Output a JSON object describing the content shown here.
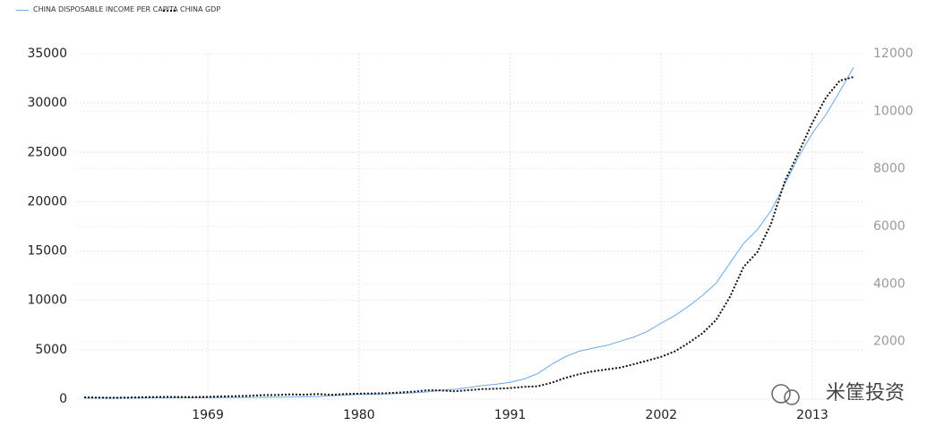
{
  "chart_data": {
    "type": "line",
    "x": [
      1960,
      1961,
      1962,
      1963,
      1964,
      1965,
      1966,
      1967,
      1968,
      1969,
      1970,
      1971,
      1972,
      1973,
      1974,
      1975,
      1976,
      1977,
      1978,
      1979,
      1980,
      1981,
      1982,
      1983,
      1984,
      1985,
      1986,
      1987,
      1988,
      1989,
      1990,
      1991,
      1992,
      1993,
      1994,
      1995,
      1996,
      1997,
      1998,
      1999,
      2000,
      2001,
      2002,
      2003,
      2004,
      2005,
      2006,
      2007,
      2008,
      2009,
      2010,
      2011,
      2012,
      2013,
      2014,
      2015,
      2016
    ],
    "series": [
      {
        "name": "CHINA DISPOSABLE INCOME PER CAPITA",
        "color": "#6aa8ea",
        "axis": "y",
        "values": [
          110,
          105,
          100,
          105,
          110,
          120,
          130,
          135,
          135,
          140,
          150,
          160,
          170,
          180,
          190,
          210,
          230,
          260,
          343,
          405,
          478,
          500,
          535,
          565,
          650,
          739,
          900,
          1002,
          1180,
          1374,
          1510,
          1700,
          2027,
          2577,
          3496,
          4283,
          4839,
          5160,
          5425,
          5854,
          6280,
          6860,
          7703,
          8472,
          9422,
          10493,
          11759,
          13786,
          15781,
          17175,
          19109,
          21810,
          24565,
          26955,
          28844,
          31195,
          33616
        ]
      },
      {
        "name": "CHINA GDP",
        "color": "#111111",
        "axis": "y2",
        "values": [
          59,
          50,
          47,
          50,
          59,
          70,
          76,
          72,
          70,
          79,
          92,
          100,
          114,
          139,
          144,
          163,
          154,
          175,
          150,
          178,
          191,
          196,
          205,
          230,
          260,
          309,
          301,
          273,
          312,
          348,
          361,
          383,
          427,
          445,
          564,
          734,
          864,
          962,
          1029,
          1094,
          1211,
          1339,
          1471,
          1660,
          1955,
          2286,
          2752,
          3552,
          4598,
          5110,
          6101,
          7573,
          8561,
          9607,
          10482,
          11065,
          11191
        ]
      }
    ],
    "xlim": [
      1960,
      2016
    ],
    "xticks": [
      1969,
      1980,
      1991,
      2002,
      2013
    ],
    "ylim": [
      0,
      35000
    ],
    "yticks": [
      0,
      5000,
      10000,
      15000,
      20000,
      25000,
      30000,
      35000
    ],
    "y2lim": [
      0,
      12000
    ],
    "y2ticks": [
      2000,
      4000,
      6000,
      8000,
      10000,
      12000
    ],
    "grid": true,
    "watermark": "米筐投资"
  }
}
